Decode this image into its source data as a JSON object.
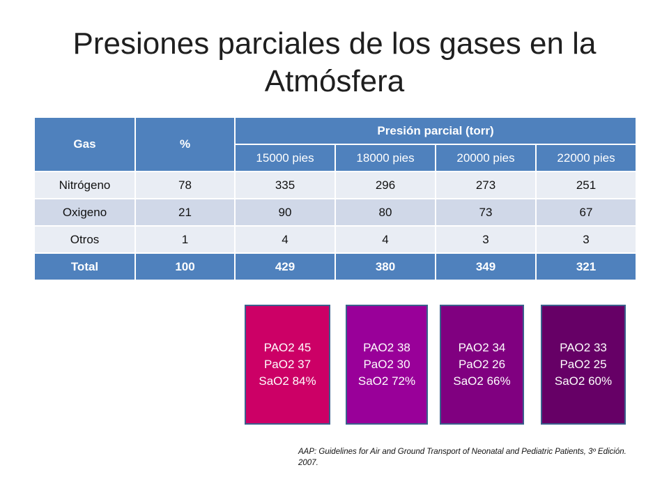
{
  "title": "Presiones parciales de los gases en la Atmósfera",
  "table": {
    "col_gas": "Gas",
    "col_pct": "%",
    "col_pressure": "Presión parcial (torr)",
    "altitudes": [
      "15000 pies",
      "18000 pies",
      "20000 pies",
      "22000 pies"
    ],
    "rows": [
      {
        "gas": "Nitrógeno",
        "pct": "78",
        "values": [
          "335",
          "296",
          "273",
          "251"
        ]
      },
      {
        "gas": "Oxigeno",
        "pct": "21",
        "values": [
          "90",
          "80",
          "73",
          "67"
        ]
      },
      {
        "gas": "Otros",
        "pct": "1",
        "values": [
          "4",
          "4",
          "3",
          "3"
        ]
      }
    ],
    "total": {
      "gas": "Total",
      "pct": "100",
      "values": [
        "429",
        "380",
        "349",
        "321"
      ]
    }
  },
  "boxes": [
    {
      "lines": [
        "PAO2 45",
        "PaO2 37",
        "SaO2 84%"
      ],
      "color": "#cc0066"
    },
    {
      "lines": [
        "PAO2 38",
        "PaO2 30",
        "SaO2 72%"
      ],
      "color": "#990099"
    },
    {
      "lines": [
        "PAO2 34",
        "PaO2 26",
        "SaO2 66%"
      ],
      "color": "#800080"
    },
    {
      "lines": [
        "PAO2 33",
        "PaO2 25",
        "SaO2 60%"
      ],
      "color": "#660066"
    }
  ],
  "citation": "AAP: Guidelines for Air and Ground Transport of Neonatal and Pediatric Patients, 3º Edición. 2007."
}
